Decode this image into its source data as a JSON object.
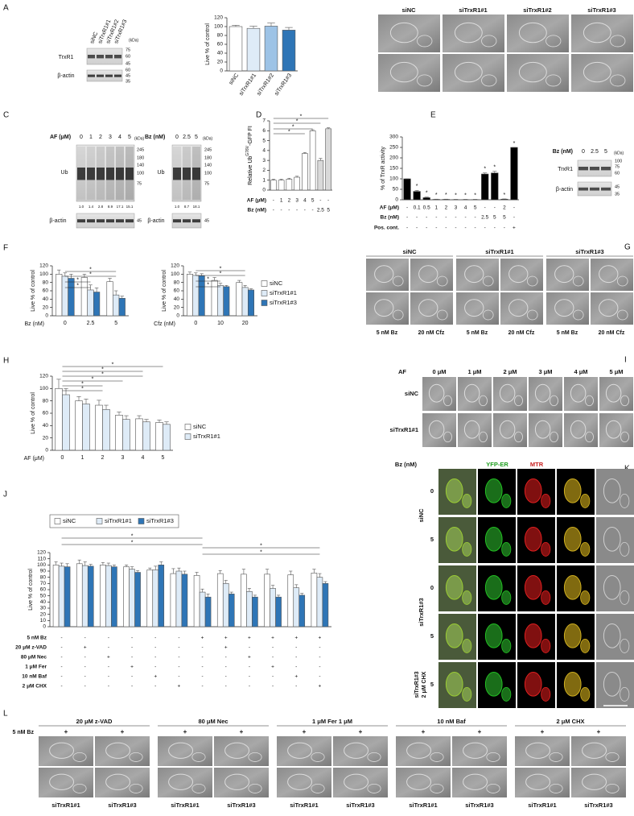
{
  "figure": {
    "panels": [
      "A",
      "B",
      "C",
      "D",
      "E",
      "F",
      "G",
      "H",
      "I",
      "J",
      "K",
      "L"
    ],
    "a_blot": {
      "lanes": [
        "siNC",
        "siTrxR1#1",
        "siTrxR1#2",
        "siTrxR1#3"
      ],
      "unit": "(kDa)",
      "bands": [
        "TrxR1",
        "β-actin"
      ],
      "markers_top": [
        75,
        60,
        45
      ],
      "markers_bottom": [
        60,
        45,
        35
      ]
    },
    "b": {
      "headers": [
        "siNC",
        "siTrxR1#1",
        "siTrxR1#2",
        "siTrxR1#3"
      ]
    },
    "c": {
      "af_label": "AF (μM)",
      "af_lanes": [
        0,
        1,
        2,
        3,
        4,
        5
      ],
      "unit": "(kDa)",
      "band": "Ub",
      "markers": [
        245,
        180,
        140,
        100,
        75
      ],
      "af_quant": [
        "1.0",
        "1.4",
        "2.8",
        "8.9",
        "17.1",
        "15.1"
      ],
      "actin": "β-actin",
      "actin_marker": 45,
      "bz_label": "Bz (nM)",
      "bz_lanes": [
        0,
        2.5,
        5
      ],
      "bz_quant": [
        "1.0",
        "8.7",
        "18.1"
      ]
    },
    "e_blot": {
      "label": "Bz (nM)",
      "lanes": [
        0,
        2.5,
        5
      ],
      "unit": "(kDa)",
      "bands": [
        "TrxR1",
        "β-actin"
      ],
      "markers_top": [
        100,
        75,
        60
      ],
      "markers_bottom": [
        45,
        35
      ]
    },
    "g": {
      "headers": [
        "siNC",
        "siTrxR1#1",
        "siTrxR1#3"
      ],
      "treatments": [
        "5 nM Bz",
        "20 nM Cfz",
        "5 nM Bz",
        "20 nM Cfz",
        "5 nM Bz",
        "20 nM Cfz"
      ]
    },
    "i": {
      "label": "AF",
      "doses": [
        "0 μM",
        "1 μM",
        "2 μM",
        "3 μM",
        "4 μM",
        "5 μM"
      ],
      "rows": [
        "siNC",
        "siTrxR1#1"
      ]
    },
    "k": {
      "label": "Bz (nM)",
      "channels": [
        "YFP-ER",
        "MTR"
      ],
      "groups": [
        "siNC",
        "siTrxR1#3"
      ],
      "chx_group": [
        "siTrxR1#3",
        "2 μM CHX"
      ],
      "doses": [
        "0",
        "5",
        "0",
        "5",
        "5"
      ]
    },
    "l": {
      "treatments": [
        "20 μM z-VAD",
        "80 μM Nec",
        "1 μM Fer 1 μM",
        "10 nM Baf",
        "2 μM CHX"
      ],
      "bz": "5 nM Bz",
      "signs": [
        "+",
        "+",
        "+",
        "+",
        "+",
        "+",
        "+",
        "+",
        "+",
        "+"
      ],
      "cells": [
        "siTrxR1#1",
        "siTrxR1#3",
        "siTrxR1#1",
        "siTrxR1#3",
        "siTrxR1#1",
        "siTrxR1#3",
        "siTrxR1#1",
        "siTrxR1#3",
        "siTrxR1#1",
        "siTrxR1#3"
      ]
    }
  },
  "chart_data": [
    {
      "type": "bar",
      "ylabel": "Live % of control",
      "categories": [
        "siNC",
        "siTrxR1#1",
        "siTrxR1#2",
        "siTrxR1#3"
      ],
      "series": [
        {
          "colors": [
            "#ffffff",
            "#deebf7",
            "#9dc3e6",
            "#2e75b6"
          ],
          "values": [
            100,
            96,
            101,
            92
          ],
          "errors": [
            3,
            5,
            7,
            6
          ]
        }
      ],
      "ylim": [
        0,
        120
      ],
      "yticks": [
        0,
        20,
        40,
        60,
        80,
        100,
        120
      ]
    },
    {
      "type": "bar",
      "ylabel": [
        "Relative Ub",
        "G76V",
        "-GFP FI"
      ],
      "series": [
        {
          "colors": [
            "#ffffff",
            "#ffffff",
            "#ffffff",
            "#ffffff",
            "#ffffff",
            "#ffffff",
            "#d9d9d9",
            "#d9d9d9"
          ],
          "values": [
            1,
            1,
            1.1,
            1.3,
            3.7,
            6.0,
            3.0,
            6.2
          ],
          "errors": [
            0.1,
            0.1,
            0.1,
            0.1,
            0.1,
            0.1,
            0.2,
            0.1
          ]
        }
      ],
      "ylim": [
        0,
        7
      ],
      "yticks": [
        0,
        1,
        2,
        3,
        4,
        5,
        6,
        7
      ],
      "condition_rows": [
        {
          "label": "AF (μM)",
          "values": [
            "-",
            "1",
            "2",
            "3",
            "4",
            "5",
            "-",
            "-"
          ]
        },
        {
          "label": "Bz (nM)",
          "values": [
            "-",
            "-",
            "-",
            "-",
            "-",
            "-",
            "2.5",
            "5"
          ]
        }
      ],
      "annotations": [
        "*",
        "*",
        "*",
        "*"
      ]
    },
    {
      "type": "bar",
      "ylabel": "% of TrxR activity",
      "series": [
        {
          "color": "#000000",
          "values": [
            100,
            40,
            10,
            2,
            2,
            1,
            1,
            1,
            123,
            128,
            3,
            250
          ],
          "errors": [
            0,
            5,
            3,
            1,
            1,
            1,
            1,
            1,
            5,
            8,
            1,
            0
          ]
        }
      ],
      "ylim": [
        0,
        300
      ],
      "yticks": [
        0,
        50,
        100,
        150,
        200,
        250,
        300
      ],
      "condition_rows": [
        {
          "label": "AF (μM)",
          "values": [
            "-",
            "0.1",
            "0.5",
            "1",
            "2",
            "3",
            "4",
            "5",
            "-",
            "-",
            "2",
            "-"
          ]
        },
        {
          "label": "Bz (nM)",
          "values": [
            "-",
            "-",
            "-",
            "-",
            "-",
            "-",
            "-",
            "-",
            "2.5",
            "5",
            "5",
            "-"
          ]
        },
        {
          "label": "Pos. cont.",
          "values": [
            "-",
            "-",
            "-",
            "-",
            "-",
            "-",
            "-",
            "-",
            "-",
            "-",
            "-",
            "+"
          ]
        }
      ],
      "annotations": [
        "*",
        "*",
        "*",
        "*",
        "*",
        "*",
        "*",
        "*",
        "*",
        "*",
        "*"
      ]
    },
    {
      "type": "bar",
      "ylabel": "Live % of control",
      "xlabel": "Bz (nM)",
      "categories": [
        "0",
        "2.5",
        "5"
      ],
      "series": [
        {
          "color": "#ffffff",
          "values": [
            100,
            92,
            82
          ],
          "errors": [
            10,
            8,
            8
          ]
        },
        {
          "color": "#deebf7",
          "values": [
            95,
            62,
            50
          ],
          "errors": [
            8,
            12,
            10
          ]
        },
        {
          "color": "#2e75b6",
          "values": [
            90,
            57,
            42
          ],
          "errors": [
            10,
            10,
            5
          ]
        }
      ],
      "ylim": [
        0,
        120
      ],
      "yticks": [
        0,
        20,
        40,
        60,
        80,
        100,
        120
      ],
      "annotations": [
        "*",
        "*",
        "*",
        "*"
      ]
    },
    {
      "type": "bar",
      "ylabel": "Live % of control",
      "xlabel": "Cfz (nM)",
      "categories": [
        "0",
        "10",
        "20"
      ],
      "series": [
        {
          "name": "siNC",
          "color": "#ffffff",
          "values": [
            100,
            85,
            80
          ],
          "errors": [
            5,
            7,
            5
          ]
        },
        {
          "name": "siTrxR1#1",
          "color": "#deebf7",
          "values": [
            97,
            73,
            68
          ],
          "errors": [
            6,
            5,
            5
          ]
        },
        {
          "name": "siTrxR1#3",
          "color": "#2e75b6",
          "values": [
            96,
            70,
            62
          ],
          "errors": [
            5,
            3,
            3
          ]
        }
      ],
      "ylim": [
        0,
        120
      ],
      "yticks": [
        0,
        20,
        40,
        60,
        80,
        100,
        120
      ],
      "annotations": [
        "*",
        "*",
        "*",
        "*"
      ]
    },
    {
      "type": "bar",
      "ylabel": "Live % of control",
      "xlabel": "AF (μM)",
      "categories": [
        "0",
        "1",
        "2",
        "3",
        "4",
        "5"
      ],
      "series": [
        {
          "name": "siNC",
          "color": "#ffffff",
          "values": [
            100,
            80,
            73,
            57,
            51,
            45
          ],
          "errors": [
            15,
            7,
            8,
            5,
            5,
            4
          ]
        },
        {
          "name": "siTrxR1#1",
          "color": "#deebf7",
          "values": [
            90,
            75,
            66,
            50,
            46,
            42
          ],
          "errors": [
            10,
            8,
            7,
            6,
            4,
            4
          ]
        }
      ],
      "ylim": [
        0,
        120
      ],
      "yticks": [
        0,
        20,
        40,
        60,
        80,
        100,
        120
      ],
      "annotations": [
        "*",
        "*",
        "*",
        "*",
        "*",
        "*"
      ]
    },
    {
      "type": "bar",
      "ylabel": "Live % of control",
      "series": [
        {
          "name": "siNC",
          "color": "#ffffff",
          "values": [
            100,
            102,
            100,
            97,
            92,
            86,
            83,
            86,
            85,
            85,
            84,
            87
          ],
          "errors": [
            5,
            6,
            4,
            3,
            3,
            8,
            5,
            5,
            8,
            8,
            6,
            6
          ]
        },
        {
          "name": "siTrxR1#1",
          "color": "#deebf7",
          "values": [
            98,
            99,
            99,
            93,
            92,
            90,
            56,
            70,
            57,
            62,
            63,
            80
          ],
          "errors": [
            5,
            6,
            4,
            4,
            6,
            5,
            5,
            5,
            5,
            5,
            5,
            6
          ]
        },
        {
          "name": "siTrxR1#3",
          "color": "#2e75b6",
          "values": [
            97,
            98,
            97,
            88,
            100,
            85,
            48,
            53,
            48,
            48,
            51,
            70
          ],
          "errors": [
            5,
            3,
            3,
            3,
            5,
            5,
            5,
            3,
            3,
            3,
            3,
            3
          ]
        }
      ],
      "ylim": [
        0,
        120
      ],
      "yticks": [
        0,
        10,
        20,
        30,
        40,
        50,
        60,
        70,
        80,
        90,
        100,
        110,
        120
      ],
      "condition_rows": [
        {
          "label": "5 nM Bz",
          "values": [
            "-",
            "-",
            "-",
            "-",
            "-",
            "-",
            "+",
            "+",
            "+",
            "+",
            "+",
            "+"
          ]
        },
        {
          "label": "20 μM z-VAD",
          "values": [
            "-",
            "+",
            "-",
            "-",
            "-",
            "-",
            "-",
            "+",
            "-",
            "-",
            "-",
            "-"
          ]
        },
        {
          "label": "80 μM Nec",
          "values": [
            "-",
            "-",
            "+",
            "-",
            "-",
            "-",
            "-",
            "-",
            "+",
            "-",
            "-",
            "-"
          ]
        },
        {
          "label": "1 μM Fer",
          "values": [
            "-",
            "-",
            "-",
            "+",
            "-",
            "-",
            "-",
            "-",
            "-",
            "+",
            "-",
            "-"
          ]
        },
        {
          "label": "10 nM Baf",
          "values": [
            "-",
            "-",
            "-",
            "-",
            "+",
            "-",
            "-",
            "-",
            "-",
            "-",
            "+",
            "-"
          ]
        },
        {
          "label": "2 μM CHX",
          "values": [
            "-",
            "-",
            "-",
            "-",
            "-",
            "+",
            "-",
            "-",
            "-",
            "-",
            "-",
            "+"
          ]
        }
      ],
      "annotations": [
        "*",
        "*",
        "*",
        "*"
      ]
    }
  ]
}
